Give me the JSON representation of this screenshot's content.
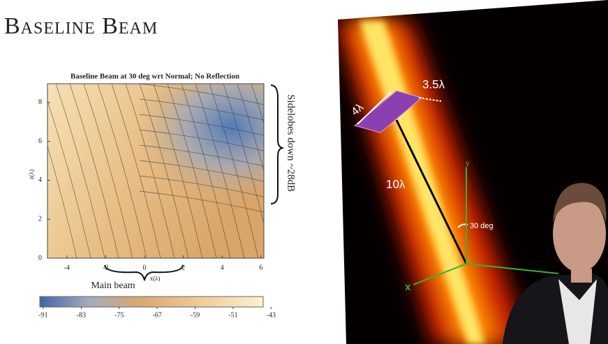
{
  "slide": {
    "title": "Baseline Beam"
  },
  "plot": {
    "title": "Baseline Beam at 30 deg wrt Normal; No Reflection",
    "x_label": "x(λ)",
    "y_label": "z(λ)",
    "xticks": [
      -4,
      -2,
      0,
      2,
      4,
      6
    ],
    "yticks": [
      0,
      2,
      4,
      6,
      8
    ],
    "colorbar_ticks": [
      -91,
      -83,
      -75,
      -67,
      -59,
      -51,
      -43
    ]
  },
  "annotations": {
    "main_beam": "Main beam",
    "sidelobes": "Sidelobes down ~28dB"
  },
  "figure": {
    "width_label": "3.5λ",
    "height_label": "4λ",
    "distance_label": "10λ",
    "angle_label": "30 deg",
    "axis_y": "y",
    "axis_x": "x"
  }
}
